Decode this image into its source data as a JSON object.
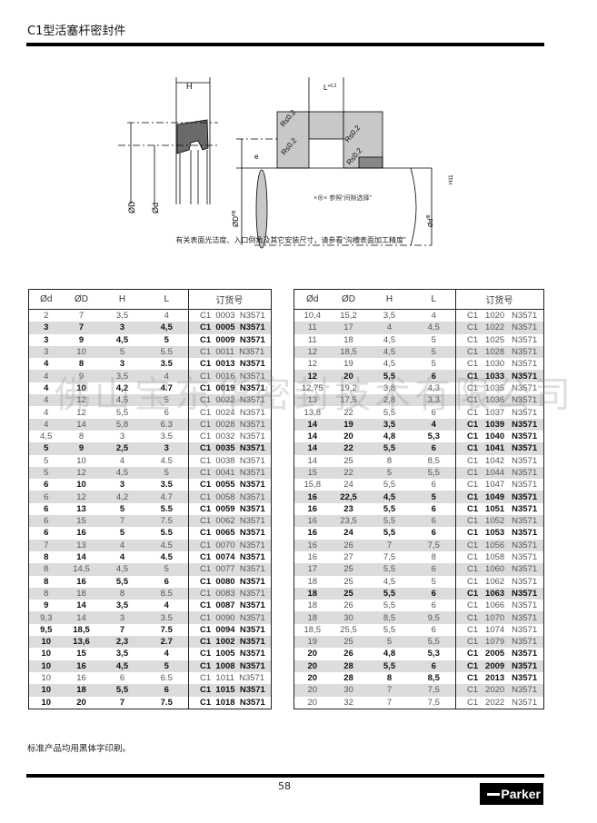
{
  "header": {
    "title": "C1型活塞杆密封件"
  },
  "diagram": {
    "label_H": "H",
    "label_L": "L",
    "label_L_tol": "+0.2",
    "label_R": "R≤0.2",
    "label_e": "e",
    "label_OD": "ØD",
    "label_Od": "Ød",
    "label_groove_OD": "ØD",
    "label_groove_OD_tol": "H9",
    "label_rod": "Ød",
    "label_rod_tol": "f8",
    "label_H11": "H11",
    "note_gap": "×⊕× 参照“间隙选择”",
    "caption": "有关表面光洁度、入口倒角及其它安装尺寸，请参看“沟槽表面加工精度”"
  },
  "table_headers": {
    "d": "Ød",
    "D": "ØD",
    "H": "H",
    "L": "L",
    "order": "订货号"
  },
  "left_table": [
    [
      "2",
      "7",
      "3,5",
      "4",
      "C1  0003  N3571",
      0
    ],
    [
      "3",
      "7",
      "3",
      "4,5",
      "C1  0005  N3571",
      1
    ],
    [
      "3",
      "9",
      "4,5",
      "5",
      "C1  0009  N3571",
      1
    ],
    [
      "3",
      "10",
      "5",
      "5.5",
      "C1  0011  N3571",
      0
    ],
    [
      "4",
      "8",
      "3",
      "3.5",
      "C1  0013  N3571",
      1
    ],
    [
      "4",
      "9",
      "3,5",
      "4",
      "C1  0016  N3571",
      0
    ],
    [
      "4",
      "10",
      "4,2",
      "4.7",
      "C1  0019  N3571",
      1
    ],
    [
      "4",
      "12",
      "4,5",
      "5",
      "C1  0022  N3571",
      0
    ],
    [
      "4",
      "12",
      "5,5",
      "6",
      "C1  0024  N3571",
      0
    ],
    [
      "4",
      "14",
      "5,8",
      "6.3",
      "C1  0028  N3571",
      0
    ],
    [
      "4,5",
      "8",
      "3",
      "3.5",
      "C1  0032  N3571",
      0
    ],
    [
      "5",
      "9",
      "2,5",
      "3",
      "C1  0035  N3571",
      1
    ],
    [
      "5",
      "10",
      "4",
      "4.5",
      "C1  0038  N3571",
      0
    ],
    [
      "5",
      "12",
      "4,5",
      "5",
      "C1  0041  N3571",
      0
    ],
    [
      "6",
      "10",
      "3",
      "3.5",
      "C1  0055  N3571",
      1
    ],
    [
      "6",
      "12",
      "4,2",
      "4.7",
      "C1  0058  N3571",
      0
    ],
    [
      "6",
      "13",
      "5",
      "5.5",
      "C1  0059  N3571",
      1
    ],
    [
      "6",
      "15",
      "7",
      "7.5",
      "C1  0062  N3571",
      0
    ],
    [
      "6",
      "16",
      "5",
      "5.5",
      "C1  0065  N3571",
      1
    ],
    [
      "7",
      "13",
      "4",
      "4.5",
      "C1  0070  N3571",
      0
    ],
    [
      "8",
      "14",
      "4",
      "4.5",
      "C1  0074  N3571",
      1
    ],
    [
      "8",
      "14,5",
      "4,5",
      "5",
      "C1  0077  N3571",
      0
    ],
    [
      "8",
      "16",
      "5,5",
      "6",
      "C1  0080  N3571",
      1
    ],
    [
      "8",
      "18",
      "8",
      "8.5",
      "C1  0083  N3571",
      0
    ],
    [
      "9",
      "14",
      "3,5",
      "4",
      "C1  0087  N3571",
      1
    ],
    [
      "9,3",
      "14",
      "3",
      "3.5",
      "C1  0090  N3571",
      0
    ],
    [
      "9,5",
      "18,5",
      "7",
      "7.5",
      "C1  0094  N3571",
      1
    ],
    [
      "10",
      "13,6",
      "2,3",
      "2.7",
      "C1  1002  N3571",
      1
    ],
    [
      "10",
      "15",
      "3,5",
      "4",
      "C1  1005  N3571",
      1
    ],
    [
      "10",
      "16",
      "4,5",
      "5",
      "C1  1008  N3571",
      1
    ],
    [
      "10",
      "16",
      "6",
      "6.5",
      "C1  1011  N3571",
      0
    ],
    [
      "10",
      "18",
      "5,5",
      "6",
      "C1  1015  N3571",
      1
    ],
    [
      "10",
      "20",
      "7",
      "7.5",
      "C1  1018  N3571",
      1
    ]
  ],
  "right_table": [
    [
      "10,4",
      "15,2",
      "3,5",
      "4",
      "C1   1020   N3571",
      0
    ],
    [
      "11",
      "17",
      "4",
      "4,5",
      "C1   1022   N3571",
      0
    ],
    [
      "11",
      "18",
      "4,5",
      "5",
      "C1   1025   N3571",
      0
    ],
    [
      "12",
      "18,5",
      "4,5",
      "5",
      "C1   1028   N3571",
      0
    ],
    [
      "12",
      "19",
      "4,5",
      "5",
      "C1   1030   N3571",
      0
    ],
    [
      "12",
      "20",
      "5,5",
      "6",
      "C1   1033   N3571",
      1
    ],
    [
      "12,75",
      "19,2",
      "3,8",
      "4,3",
      "C1   1035   N3571",
      0
    ],
    [
      "13",
      "17,5",
      "2,8",
      "3,3",
      "C1   1036   N3571",
      0
    ],
    [
      "13,8",
      "22",
      "5,5",
      "6",
      "C1   1037   N3571",
      0
    ],
    [
      "14",
      "19",
      "3,5",
      "4",
      "C1   1039   N3571",
      1
    ],
    [
      "14",
      "20",
      "4,8",
      "5,3",
      "C1   1040   N3571",
      1
    ],
    [
      "14",
      "22",
      "5,5",
      "6",
      "C1   1041   N3571",
      1
    ],
    [
      "14",
      "25",
      "8",
      "8,5",
      "C1   1042   N3571",
      0
    ],
    [
      "15",
      "22",
      "5",
      "5,5",
      "C1   1044   N3571",
      0
    ],
    [
      "15,8",
      "24",
      "5,5",
      "6",
      "C1   1047   N3571",
      0
    ],
    [
      "16",
      "22,5",
      "4,5",
      "5",
      "C1   1049   N3571",
      1
    ],
    [
      "16",
      "23",
      "5,5",
      "6",
      "C1   1051   N3571",
      1
    ],
    [
      "16",
      "23,5",
      "5,5",
      "6",
      "C1   1052   N3571",
      0
    ],
    [
      "16",
      "24",
      "5,5",
      "6",
      "C1   1053   N3571",
      1
    ],
    [
      "16",
      "26",
      "7",
      "7,5",
      "C1   1056   N3571",
      0
    ],
    [
      "16",
      "27",
      "7,5",
      "8",
      "C1   1058   N3571",
      0
    ],
    [
      "17",
      "25",
      "5,5",
      "6",
      "C1   1060   N3571",
      0
    ],
    [
      "18",
      "25",
      "4,5",
      "5",
      "C1   1062   N3571",
      0
    ],
    [
      "18",
      "25",
      "5,5",
      "6",
      "C1   1063   N3571",
      1
    ],
    [
      "18",
      "26",
      "5,5",
      "6",
      "C1   1066   N3571",
      0
    ],
    [
      "18",
      "30",
      "8,5",
      "9,5",
      "C1   1070   N3571",
      0
    ],
    [
      "18,5",
      "25,5",
      "5,5",
      "6",
      "C1   1074   N3571",
      0
    ],
    [
      "19",
      "25",
      "5",
      "5,5",
      "C1   1079   N3571",
      0
    ],
    [
      "20",
      "26",
      "4,8",
      "5,3",
      "C1   2005   N3571",
      1
    ],
    [
      "20",
      "28",
      "5,5",
      "6",
      "C1   2009   N3571",
      1
    ],
    [
      "20",
      "28",
      "8",
      "8,5",
      "C1   2013   N3571",
      1
    ],
    [
      "20",
      "30",
      "7",
      "7,5",
      "C1   2020   N3571",
      0
    ],
    [
      "20",
      "32",
      "7",
      "7,5",
      "C1   2022   N3571",
      0
    ]
  ],
  "watermark": "佛山宝东华密封技术有限公司",
  "footer": {
    "note": "标准产品均用黑体字印刷。",
    "page_number": "58",
    "logo": "Parker"
  }
}
